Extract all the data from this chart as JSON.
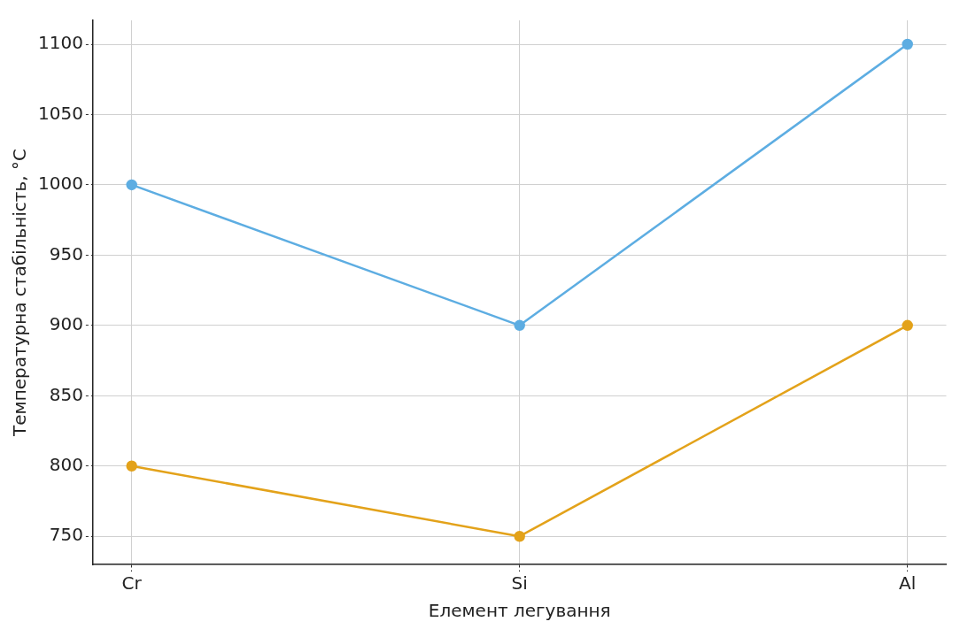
{
  "chart_data": {
    "type": "line",
    "xlabel": "Елемент легування",
    "ylabel": "Температурна стабільність, °C",
    "categories": [
      "Cr",
      "Si",
      "Al"
    ],
    "series": [
      {
        "color": "#5dade2",
        "values": [
          1000,
          900,
          1100
        ]
      },
      {
        "color": "#e3a21a",
        "values": [
          800,
          750,
          900
        ]
      }
    ],
    "ylim": [
      730,
      1117
    ],
    "yticks": [
      750,
      800,
      850,
      900,
      950,
      1000,
      1050,
      1100
    ],
    "grid": true,
    "marker": "circle",
    "line_style": "solid",
    "legend": false
  }
}
